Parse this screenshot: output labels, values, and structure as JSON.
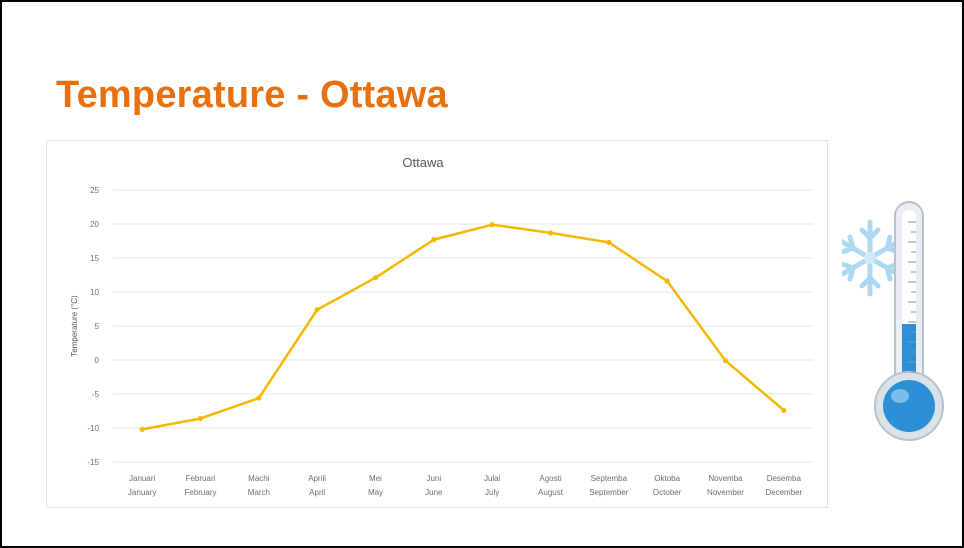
{
  "slide": {
    "title": "Temperature - Ottawa"
  },
  "colors": {
    "title": "#e8700e",
    "series_line": "#f5b800",
    "thermometer_fluid": "#2d8fd6",
    "snowflake": "#a9d6f2"
  },
  "icons": [
    "thermometer-icon",
    "snowflake-icon"
  ],
  "chart_data": {
    "type": "line",
    "title": "Ottawa",
    "ylabel": "Temperature (°C)",
    "xlabel": "",
    "ylim": [
      -15,
      25
    ],
    "yticks": [
      25,
      20,
      15,
      10,
      5,
      0,
      -5,
      -10,
      -15
    ],
    "yticks_labels": [
      "25",
      "20",
      "15",
      "10",
      "5",
      "0",
      "-5",
      "-10",
      "-15"
    ],
    "grid": true,
    "legend": "none",
    "categories": [
      [
        "Januari",
        "January"
      ],
      [
        "Februari",
        "February"
      ],
      [
        "Machi",
        "March"
      ],
      [
        "Aprili",
        "April"
      ],
      [
        "Mei",
        "May"
      ],
      [
        "Juni",
        "June"
      ],
      [
        "Julai",
        "July"
      ],
      [
        "Agosti",
        "August"
      ],
      [
        "Septemba",
        "September"
      ],
      [
        "Oktoba",
        "October"
      ],
      [
        "Novemba",
        "November"
      ],
      [
        "Desemba",
        "December"
      ]
    ],
    "series": [
      {
        "values": [
          -10.2,
          -8.6,
          -5.6,
          7.4,
          12.1,
          17.7,
          19.9,
          18.7,
          17.3,
          11.6,
          -0.1,
          -7.4
        ]
      }
    ]
  }
}
